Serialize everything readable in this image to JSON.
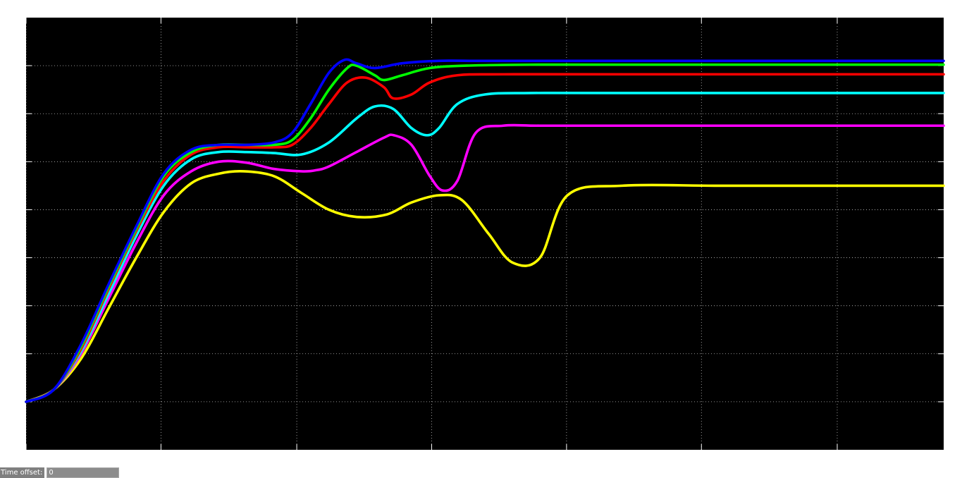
{
  "footer": {
    "time_offset_label": "Time offset:",
    "time_offset_value": "0"
  },
  "chart_data": {
    "type": "line",
    "title": "",
    "xlabel": "",
    "ylabel": "",
    "background": "#000000",
    "grid": true,
    "grid_color": "#ffffff",
    "xlim": [
      0,
      10
    ],
    "ylim": [
      -1,
      8
    ],
    "xticks": [
      0,
      1.47,
      2.95,
      4.42,
      5.89,
      7.36,
      8.84
    ],
    "yticks": [
      0,
      1,
      2,
      3,
      4,
      5,
      6,
      7
    ],
    "series": [
      {
        "color": "#ffff00",
        "x": [
          0,
          0.3,
          0.6,
          0.9,
          1.2,
          1.5,
          1.8,
          2.1,
          2.37,
          2.7,
          3.0,
          3.3,
          3.6,
          3.93,
          4.2,
          4.5,
          4.75,
          5.04,
          5.3,
          5.6,
          5.9,
          6.5,
          7.5,
          8.5,
          10
        ],
        "y": [
          0,
          0.25,
          0.9,
          1.95,
          3.0,
          3.95,
          4.55,
          4.75,
          4.8,
          4.7,
          4.35,
          4.0,
          3.85,
          3.9,
          4.15,
          4.3,
          4.2,
          3.5,
          2.9,
          3.0,
          4.3,
          4.5,
          4.5,
          4.5,
          4.5
        ]
      },
      {
        "color": "#ff00ff",
        "x": [
          0,
          0.3,
          0.6,
          0.9,
          1.2,
          1.5,
          1.8,
          2.1,
          2.4,
          2.7,
          3.0,
          3.15,
          3.3,
          3.6,
          3.9,
          4.01,
          4.2,
          4.4,
          4.54,
          4.7,
          4.9,
          5.2,
          5.6,
          6.5,
          7.5,
          10
        ],
        "y": [
          0,
          0.25,
          1.0,
          2.15,
          3.3,
          4.3,
          4.8,
          5.0,
          4.98,
          4.85,
          4.8,
          4.82,
          4.9,
          5.2,
          5.5,
          5.55,
          5.35,
          4.7,
          4.4,
          4.6,
          5.6,
          5.75,
          5.75,
          5.75,
          5.75,
          5.75
        ]
      },
      {
        "color": "#00ffff",
        "x": [
          0,
          0.3,
          0.6,
          0.9,
          1.2,
          1.5,
          1.8,
          2.1,
          2.4,
          2.7,
          3.0,
          3.3,
          3.6,
          3.8,
          4.0,
          4.2,
          4.37,
          4.5,
          4.7,
          5.0,
          5.5,
          6.5,
          10
        ],
        "y": [
          0,
          0.25,
          1.05,
          2.25,
          3.45,
          4.5,
          5.05,
          5.2,
          5.2,
          5.18,
          5.15,
          5.4,
          5.9,
          6.15,
          6.1,
          5.7,
          5.55,
          5.7,
          6.2,
          6.4,
          6.43,
          6.43,
          6.43
        ]
      },
      {
        "color": "#ff0000",
        "x": [
          0,
          0.3,
          0.6,
          0.9,
          1.2,
          1.5,
          1.8,
          2.1,
          2.4,
          2.7,
          2.9,
          3.1,
          3.3,
          3.5,
          3.7,
          3.9,
          4.0,
          4.2,
          4.4,
          4.7,
          5.2,
          6.5,
          10
        ],
        "y": [
          0,
          0.25,
          1.1,
          2.35,
          3.55,
          4.6,
          5.15,
          5.3,
          5.3,
          5.3,
          5.35,
          5.7,
          6.2,
          6.65,
          6.75,
          6.55,
          6.32,
          6.4,
          6.65,
          6.8,
          6.82,
          6.82,
          6.82
        ]
      },
      {
        "color": "#00ff00",
        "x": [
          0,
          0.3,
          0.6,
          0.9,
          1.2,
          1.5,
          1.8,
          2.1,
          2.4,
          2.7,
          2.9,
          3.1,
          3.3,
          3.5,
          3.6,
          3.8,
          3.9,
          4.1,
          4.4,
          4.8,
          5.5,
          6.5,
          10
        ],
        "y": [
          0,
          0.25,
          1.15,
          2.4,
          3.6,
          4.7,
          5.2,
          5.35,
          5.35,
          5.35,
          5.45,
          5.9,
          6.5,
          6.95,
          7.0,
          6.8,
          6.7,
          6.8,
          6.95,
          7.0,
          7.02,
          7.02,
          7.02
        ]
      },
      {
        "color": "#0000ff",
        "x": [
          0,
          0.3,
          0.6,
          0.9,
          1.2,
          1.5,
          1.8,
          2.1,
          2.4,
          2.7,
          2.9,
          3.1,
          3.3,
          3.47,
          3.6,
          3.8,
          4.1,
          4.5,
          5.0,
          6.0,
          7.5,
          10
        ],
        "y": [
          0,
          0.25,
          1.2,
          2.45,
          3.65,
          4.75,
          5.25,
          5.35,
          5.35,
          5.4,
          5.6,
          6.2,
          6.85,
          7.12,
          7.05,
          6.95,
          7.05,
          7.1,
          7.1,
          7.1,
          7.1,
          7.1
        ]
      }
    ]
  }
}
